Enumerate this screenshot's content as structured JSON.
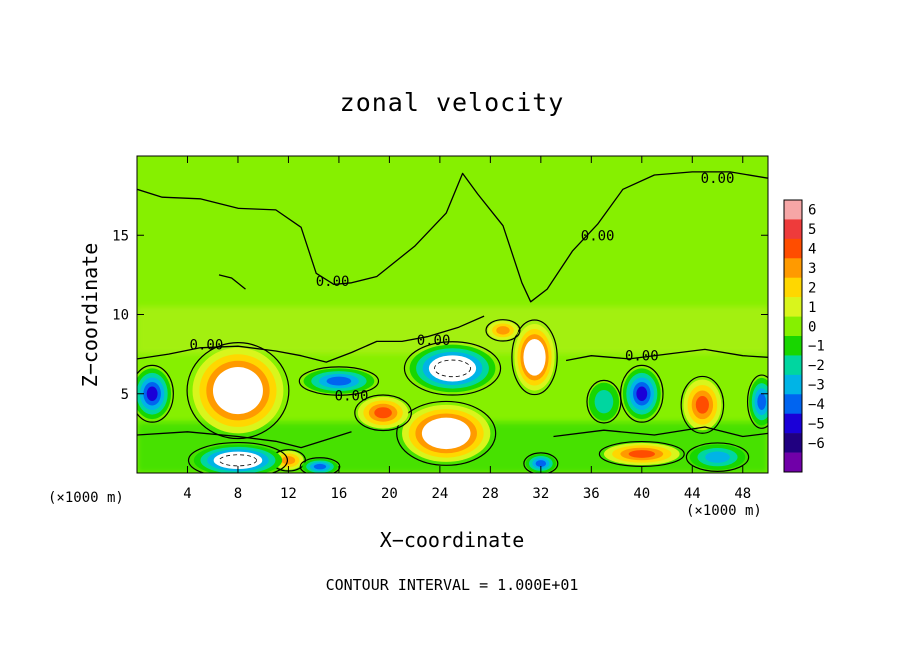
{
  "chart_data": {
    "type": "heatmap",
    "title": "zonal velocity",
    "xlabel": "X−coordinate",
    "ylabel": "Z−coordinate",
    "x_scale_note": "(×1000 m)",
    "x_ticks": [
      "4",
      "8",
      "12",
      "16",
      "20",
      "24",
      "28",
      "32",
      "36",
      "40",
      "44",
      "48"
    ],
    "x_tick_values": [
      4,
      8,
      12,
      16,
      20,
      24,
      28,
      32,
      36,
      40,
      44,
      48
    ],
    "xlim": [
      0,
      50
    ],
    "y_ticks": [
      "5",
      "10",
      "15"
    ],
    "y_tick_values": [
      5,
      10,
      15
    ],
    "ylim": [
      0,
      20
    ],
    "colorbar": {
      "labels": [
        "6",
        "5",
        "4",
        "3",
        "2",
        "1",
        "0",
        "−1",
        "−2",
        "−3",
        "−4",
        "−5",
        "−6"
      ],
      "colors": [
        "#f6a6a6",
        "#ee3b3b",
        "#ff4d00",
        "#ff9a00",
        "#ffd700",
        "#d9f51c",
        "#86f000",
        "#18d600",
        "#00d6a0",
        "#00b4e6",
        "#0064f0",
        "#1a00d8",
        "#200080",
        "#7000a8"
      ]
    },
    "contour_labels": [
      {
        "text": "0.00",
        "x": 46.0,
        "z": 18.6
      },
      {
        "text": "0.00",
        "x": 36.5,
        "z": 15.0
      },
      {
        "text": "0.00",
        "x": 15.5,
        "z": 12.1
      },
      {
        "text": "0.00",
        "x": 5.5,
        "z": 8.1
      },
      {
        "text": "0.00",
        "x": 23.5,
        "z": 8.4
      },
      {
        "text": "0.00",
        "x": 40.0,
        "z": 7.4
      },
      {
        "text": "0.00",
        "x": 17.0,
        "z": 4.9
      }
    ],
    "features": [
      {
        "sign": "positive",
        "x": 8,
        "z": 5.2,
        "rx": 3.6,
        "rz": 2.7,
        "peak": 6
      },
      {
        "sign": "positive",
        "x": 31.5,
        "z": 7.3,
        "rx": 1.6,
        "rz": 2.1,
        "peak": 6
      },
      {
        "sign": "positive",
        "x": 24.5,
        "z": 2.5,
        "rx": 3.5,
        "rz": 1.8,
        "peak": 6
      },
      {
        "sign": "positive",
        "x": 19.5,
        "z": 3.8,
        "rx": 2.0,
        "rz": 1.0,
        "peak": 4
      },
      {
        "sign": "positive",
        "x": 44.8,
        "z": 4.3,
        "rx": 1.5,
        "rz": 1.6,
        "peak": 4
      },
      {
        "sign": "positive",
        "x": 40.0,
        "z": 1.2,
        "rx": 3.0,
        "rz": 0.7,
        "peak": 4
      },
      {
        "sign": "positive",
        "x": 29.0,
        "z": 9.0,
        "rx": 1.2,
        "rz": 0.6,
        "peak": 3
      },
      {
        "sign": "positive",
        "x": 12.0,
        "z": 0.8,
        "rx": 1.2,
        "rz": 0.6,
        "peak": 3
      },
      {
        "sign": "negative",
        "x": 25.0,
        "z": 6.6,
        "rx": 3.4,
        "rz": 1.5,
        "peak": -6
      },
      {
        "sign": "negative",
        "x": 8.0,
        "z": 0.8,
        "rx": 3.5,
        "rz": 1.0,
        "peak": -6
      },
      {
        "sign": "negative",
        "x": 1.2,
        "z": 5.0,
        "rx": 1.5,
        "rz": 1.6,
        "peak": -5
      },
      {
        "sign": "negative",
        "x": 40.0,
        "z": 5.0,
        "rx": 1.5,
        "rz": 1.6,
        "peak": -5
      },
      {
        "sign": "negative",
        "x": 16.0,
        "z": 5.8,
        "rx": 2.8,
        "rz": 0.8,
        "peak": -4
      },
      {
        "sign": "negative",
        "x": 32.0,
        "z": 0.6,
        "rx": 1.2,
        "rz": 0.6,
        "peak": -4
      },
      {
        "sign": "negative",
        "x": 14.5,
        "z": 0.4,
        "rx": 1.4,
        "rz": 0.5,
        "peak": -4
      },
      {
        "sign": "negative",
        "x": 49.5,
        "z": 4.5,
        "rx": 1.0,
        "rz": 1.5,
        "peak": -4
      },
      {
        "sign": "negative",
        "x": 46.0,
        "z": 1.0,
        "rx": 2.2,
        "rz": 0.8,
        "peak": -3
      },
      {
        "sign": "negative",
        "x": 37.0,
        "z": 4.5,
        "rx": 1.2,
        "rz": 1.2,
        "peak": -2
      }
    ],
    "contour_interval_note": "CONTOUR INTERVAL = 1.000E+01"
  }
}
